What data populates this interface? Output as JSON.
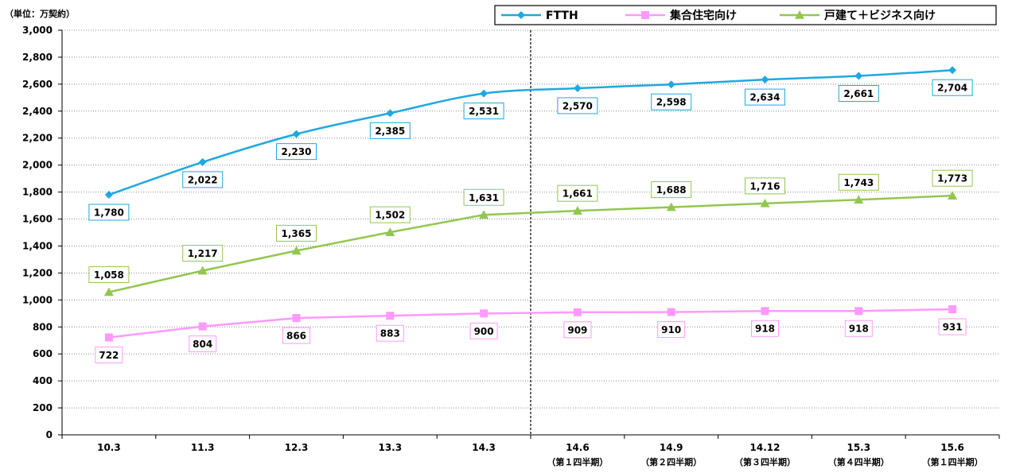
{
  "unit_label": "（単位：万契約）",
  "chart_data": {
    "type": "line",
    "title": "",
    "xlabel": "",
    "ylabel": "",
    "ylim": [
      0,
      3000
    ],
    "yticks": [
      0,
      200,
      400,
      600,
      800,
      1000,
      1200,
      1400,
      1600,
      1800,
      2000,
      2200,
      2400,
      2600,
      2800,
      3000
    ],
    "ytick_labels": [
      "0",
      "200",
      "400",
      "600",
      "800",
      "1,000",
      "1,200",
      "1,400",
      "1,600",
      "1,800",
      "2,000",
      "2,200",
      "2,400",
      "2,600",
      "2,800",
      "3,000"
    ],
    "grid": "horizontal dotted",
    "legend_position": "top-right",
    "divider_after_category_index": 4,
    "categories": [
      {
        "label": "10.3",
        "sub": ""
      },
      {
        "label": "11.3",
        "sub": ""
      },
      {
        "label": "12.3",
        "sub": ""
      },
      {
        "label": "13.3",
        "sub": ""
      },
      {
        "label": "14.3",
        "sub": ""
      },
      {
        "label": "14.6",
        "sub": "（第１四半期）"
      },
      {
        "label": "14.9",
        "sub": "（第２四半期）"
      },
      {
        "label": "14.12",
        "sub": "（第３四半期）"
      },
      {
        "label": "15.3",
        "sub": "（第４四半期）"
      },
      {
        "label": "15.6",
        "sub": "（第１四半期）"
      }
    ],
    "series": [
      {
        "name": "FTTH",
        "color": "#1FA8E0",
        "marker": "diamond",
        "smooth": true,
        "values": [
          1780,
          2022,
          2230,
          2385,
          2531,
          2570,
          2598,
          2634,
          2661,
          2704
        ],
        "labels": [
          "1,780",
          "2,022",
          "2,230",
          "2,385",
          "2,531",
          "2,570",
          "2,598",
          "2,634",
          "2,661",
          "2,704"
        ],
        "label_position": "below"
      },
      {
        "name": "集合住宅向け",
        "color": "#FF99FF",
        "marker": "square",
        "smooth": false,
        "values": [
          722,
          804,
          866,
          883,
          900,
          909,
          910,
          918,
          918,
          931
        ],
        "labels": [
          "722",
          "804",
          "866",
          "883",
          "900",
          "909",
          "910",
          "918",
          "918",
          "931"
        ],
        "label_position": "below"
      },
      {
        "name": "戸建て＋ビジネス向け",
        "color": "#92C74F",
        "marker": "triangle",
        "smooth": false,
        "values": [
          1058,
          1217,
          1365,
          1502,
          1631,
          1661,
          1688,
          1716,
          1743,
          1773
        ],
        "labels": [
          "1,058",
          "1,217",
          "1,365",
          "1,502",
          "1,631",
          "1,661",
          "1,688",
          "1,716",
          "1,743",
          "1,773"
        ],
        "label_position": "above"
      }
    ]
  }
}
